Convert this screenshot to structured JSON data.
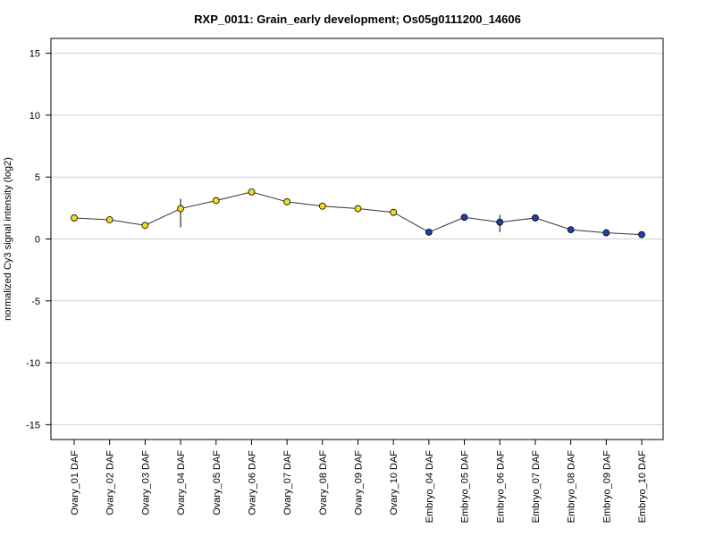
{
  "chart_data": {
    "type": "line",
    "title": "RXP_0011: Grain_early development; Os05g0111200_14606",
    "xlabel": "",
    "ylabel": "normalized Cy3 signal intensity (log2)",
    "ylim": [
      -16.2,
      16.2
    ],
    "yticks": [
      -15,
      -10,
      -5,
      0,
      5,
      10,
      15
    ],
    "grid": true,
    "categories": [
      "Ovary_01 DAF",
      "Ovary_02 DAF",
      "Ovary_03 DAF",
      "Ovary_04 DAF",
      "Ovary_05 DAF",
      "Ovary_06 DAF",
      "Ovary_07 DAF",
      "Ovary_08 DAF",
      "Ovary_09 DAF",
      "Ovary_10 DAF",
      "Embryo_04 DAF",
      "Embryo_05 DAF",
      "Embryo_06 DAF",
      "Embryo_07 DAF",
      "Embryo_08 DAF",
      "Embryo_09 DAF",
      "Embryo_10 DAF"
    ],
    "values": [
      1.7,
      1.55,
      1.1,
      2.45,
      3.1,
      3.8,
      3.0,
      2.65,
      2.45,
      2.15,
      0.55,
      1.75,
      1.35,
      1.7,
      0.75,
      0.5,
      0.35
    ],
    "error_low": [
      1.7,
      1.55,
      1.1,
      0.95,
      3.1,
      3.8,
      3.0,
      2.65,
      2.45,
      2.15,
      0.55,
      1.75,
      0.55,
      1.7,
      0.75,
      0.5,
      0.35
    ],
    "error_high": [
      1.7,
      1.55,
      1.1,
      3.25,
      3.1,
      3.8,
      3.0,
      2.65,
      2.45,
      2.15,
      0.55,
      1.75,
      1.95,
      1.7,
      0.75,
      0.5,
      0.35
    ],
    "point_colors": [
      "#f2dc1e",
      "#f2dc1e",
      "#f2dc1e",
      "#f2dc1e",
      "#f2dc1e",
      "#f2dc1e",
      "#f2dc1e",
      "#f2dc1e",
      "#f2dc1e",
      "#f2dc1e",
      "#1f3fae",
      "#1f3fae",
      "#1f3fae",
      "#1f3fae",
      "#1f3fae",
      "#1f3fae",
      "#1f3fae"
    ],
    "line_color": "#333333",
    "grid_color": "#cfcfcf"
  }
}
